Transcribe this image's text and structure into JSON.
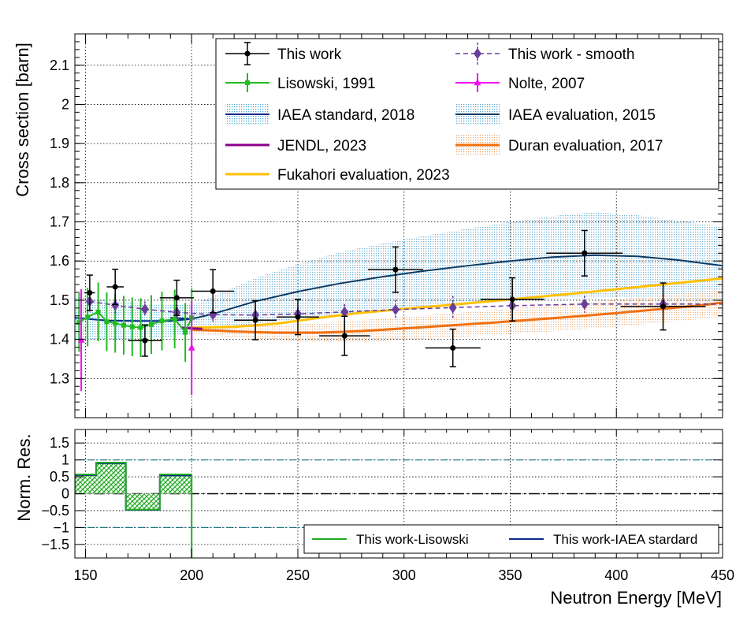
{
  "chart_data": [
    {
      "type": "scatter",
      "panel": "top",
      "ylabel": "Cross section [barn]",
      "xlim": [
        145,
        450
      ],
      "ylim": [
        1.2,
        2.18
      ],
      "yticks": [
        1.3,
        1.4,
        1.5,
        1.6,
        1.7,
        1.8,
        1.9,
        2,
        2.1
      ],
      "ytick_labels": [
        "1.3",
        "1.4",
        "1.5",
        "1.6",
        "1.7",
        "1.8",
        "1.9",
        "2",
        "2.1"
      ],
      "legend": {
        "placement": "top-right",
        "entries": [
          {
            "key": "this_work",
            "label": "This work"
          },
          {
            "key": "this_work_smooth",
            "label": "This work - smooth"
          },
          {
            "key": "lisowski",
            "label": "Lisowski, 1991"
          },
          {
            "key": "nolte",
            "label": "Nolte, 2007"
          },
          {
            "key": "iaea_std",
            "label": "IAEA standard, 2018"
          },
          {
            "key": "iaea_eval",
            "label": "IAEA evaluation, 2015"
          },
          {
            "key": "jendl",
            "label": "JENDL, 2023"
          },
          {
            "key": "duran",
            "label": "Duran evaluation, 2017"
          },
          {
            "key": "fukahori",
            "label": "Fukahori evaluation, 2023"
          }
        ]
      },
      "series": [
        {
          "key": "this_work",
          "name": "This work",
          "color": "#000000",
          "marker": "circle",
          "points": [
            {
              "x": 152,
              "y": 1.519,
              "xerr": 2.5,
              "yerr": 0.045
            },
            {
              "x": 164,
              "y": 1.534,
              "xerr": 4,
              "yerr": 0.045
            },
            {
              "x": 178,
              "y": 1.397,
              "xerr": 8,
              "yerr": 0.04
            },
            {
              "x": 193,
              "y": 1.506,
              "xerr": 8,
              "yerr": 0.045
            },
            {
              "x": 210,
              "y": 1.523,
              "xerr": 10,
              "yerr": 0.055
            },
            {
              "x": 230,
              "y": 1.449,
              "xerr": 10,
              "yerr": 0.05
            },
            {
              "x": 250,
              "y": 1.457,
              "xerr": 10,
              "yerr": 0.045
            },
            {
              "x": 272,
              "y": 1.409,
              "xerr": 12,
              "yerr": 0.05
            },
            {
              "x": 296,
              "y": 1.578,
              "xerr": 13,
              "yerr": 0.058
            },
            {
              "x": 323,
              "y": 1.378,
              "xerr": 13,
              "yerr": 0.048
            },
            {
              "x": 351,
              "y": 1.502,
              "xerr": 15,
              "yerr": 0.055
            },
            {
              "x": 385,
              "y": 1.62,
              "xerr": 18,
              "yerr": 0.058
            },
            {
              "x": 422,
              "y": 1.484,
              "xerr": 20,
              "yerr": 0.06
            }
          ]
        },
        {
          "key": "this_work_smooth",
          "name": "This work - smooth",
          "color": "#6a3d9a",
          "marker": "diamond",
          "points": [
            {
              "x": 152,
              "y": 1.497,
              "yerr": 0.03
            },
            {
              "x": 164,
              "y": 1.487,
              "yerr": 0.025
            },
            {
              "x": 178,
              "y": 1.477,
              "yerr": 0.02
            },
            {
              "x": 193,
              "y": 1.469,
              "yerr": 0.02
            },
            {
              "x": 210,
              "y": 1.463,
              "yerr": 0.018
            },
            {
              "x": 230,
              "y": 1.462,
              "yerr": 0.018
            },
            {
              "x": 250,
              "y": 1.465,
              "yerr": 0.018
            },
            {
              "x": 272,
              "y": 1.47,
              "yerr": 0.02
            },
            {
              "x": 296,
              "y": 1.476,
              "yerr": 0.025
            },
            {
              "x": 323,
              "y": 1.481,
              "yerr": 0.03
            },
            {
              "x": 351,
              "y": 1.486,
              "yerr": 0.03
            },
            {
              "x": 385,
              "y": 1.49,
              "yerr": 0.022
            },
            {
              "x": 422,
              "y": 1.49,
              "yerr": 0.025
            }
          ],
          "line_end_x": 450
        },
        {
          "key": "lisowski",
          "name": "Lisowski, 1991",
          "color": "#22bb22",
          "marker": "square",
          "points": [
            {
              "x": 147,
              "y": 1.443,
              "yerr": 0.075
            },
            {
              "x": 151,
              "y": 1.457,
              "yerr": 0.075
            },
            {
              "x": 156,
              "y": 1.47,
              "yerr": 0.075
            },
            {
              "x": 160,
              "y": 1.445,
              "yerr": 0.075
            },
            {
              "x": 164,
              "y": 1.441,
              "yerr": 0.075
            },
            {
              "x": 168,
              "y": 1.436,
              "yerr": 0.075
            },
            {
              "x": 172,
              "y": 1.432,
              "yerr": 0.075
            },
            {
              "x": 176,
              "y": 1.43,
              "yerr": 0.075
            },
            {
              "x": 181,
              "y": 1.438,
              "yerr": 0.075
            },
            {
              "x": 186,
              "y": 1.447,
              "yerr": 0.075
            },
            {
              "x": 192,
              "y": 1.452,
              "yerr": 0.075
            },
            {
              "x": 197,
              "y": 1.418,
              "yerr": 0.075
            },
            {
              "x": 200,
              "y": 1.455,
              "yerr": 0.075
            }
          ]
        },
        {
          "key": "nolte",
          "name": "Nolte, 2007",
          "color": "#ee10ee",
          "marker": "triangle",
          "points": [
            {
              "x": 148,
              "y": 1.398,
              "yerr": 0.13
            },
            {
              "x": 200,
              "y": 1.378,
              "yerr": 0.12
            }
          ]
        },
        {
          "key": "iaea_std",
          "name": "IAEA standard, 2018",
          "color": "#0a2a8a",
          "band_color": "#4aa8d8",
          "x": [
            145,
            160,
            175,
            190,
            200
          ],
          "y": [
            1.455,
            1.448,
            1.447,
            1.447,
            1.452
          ],
          "band_halfwidth": [
            0.055,
            0.05,
            0.045,
            0.04,
            0.04
          ]
        },
        {
          "key": "iaea_eval",
          "name": "IAEA evaluation, 2015",
          "color": "#0b3a63",
          "band_color": "#5ba3cc",
          "x": [
            190,
            200,
            210,
            230,
            250,
            270,
            290,
            310,
            330,
            350,
            370,
            390,
            410,
            430,
            450
          ],
          "y": [
            1.455,
            1.452,
            1.465,
            1.497,
            1.522,
            1.543,
            1.56,
            1.575,
            1.588,
            1.6,
            1.61,
            1.615,
            1.612,
            1.602,
            1.588
          ],
          "band_halfwidth": [
            0.035,
            0.035,
            0.045,
            0.06,
            0.07,
            0.08,
            0.085,
            0.09,
            0.095,
            0.1,
            0.105,
            0.11,
            0.105,
            0.1,
            0.1
          ]
        },
        {
          "key": "jendl",
          "name": "JENDL, 2023",
          "color": "#8b008b",
          "x": [
            195,
            200,
            205
          ],
          "y": [
            1.43,
            1.428,
            1.427
          ]
        },
        {
          "key": "duran",
          "name": "Duran evaluation, 2017",
          "color": "#f07010",
          "band_color": "#e8a060",
          "x": [
            200,
            220,
            240,
            260,
            280,
            300,
            320,
            340,
            360,
            380,
            400,
            420,
            440,
            450
          ],
          "y": [
            1.425,
            1.42,
            1.417,
            1.417,
            1.421,
            1.428,
            1.435,
            1.442,
            1.45,
            1.458,
            1.467,
            1.477,
            1.487,
            1.494
          ],
          "band_halfwidth": [
            0.01,
            0.015,
            0.02,
            0.025,
            0.028,
            0.03,
            0.03,
            0.032,
            0.033,
            0.034,
            0.035,
            0.035,
            0.035,
            0.035
          ]
        },
        {
          "key": "fukahori",
          "name": "Fukahori evaluation, 2023",
          "color": "#ffc000",
          "x": [
            200,
            220,
            240,
            260,
            280,
            300,
            320,
            340,
            360,
            380,
            400,
            420,
            440,
            450
          ],
          "y": [
            1.43,
            1.432,
            1.44,
            1.455,
            1.468,
            1.478,
            1.487,
            1.497,
            1.507,
            1.517,
            1.528,
            1.539,
            1.55,
            1.556
          ]
        }
      ]
    },
    {
      "type": "bar",
      "panel": "bottom",
      "ylabel": "Norm. Res.",
      "xlabel": "Neutron Energy [MeV]",
      "xlim": [
        145,
        450
      ],
      "ylim": [
        -1.9,
        1.9
      ],
      "xticks": [
        150,
        200,
        250,
        300,
        350,
        400,
        450
      ],
      "xtick_labels": [
        "150",
        "200",
        "250",
        "300",
        "350",
        "400",
        "450"
      ],
      "yticks": [
        -1.5,
        -1,
        -0.5,
        0,
        0.5,
        1,
        1.5
      ],
      "ytick_labels": [
        "−1.5",
        "−1",
        "−0.5",
        "0",
        "0.5",
        "1",
        "1.5"
      ],
      "reference_lines": [
        -1,
        0,
        1
      ],
      "legend": {
        "placement": "bottom-right",
        "entries": [
          {
            "key": "res_lisowski",
            "label": "This work-Lisowski"
          },
          {
            "key": "res_iaea",
            "label": "This work-IAEA stardard"
          }
        ]
      },
      "series": [
        {
          "key": "res_lisowski",
          "name": "This work-Lisowski",
          "color": "#22aa22",
          "bins": [
            {
              "x0": 145,
              "x1": 155,
              "value": 0.57
            },
            {
              "x0": 155,
              "x1": 169,
              "value": 0.92
            },
            {
              "x0": 169,
              "x1": 185,
              "value": -0.47
            },
            {
              "x0": 185,
              "x1": 200,
              "value": 0.57
            }
          ]
        },
        {
          "key": "res_iaea",
          "name": "This work-IAEA stardard",
          "color": "#0a2a8a",
          "bins": [
            {
              "x0": 145,
              "x1": 155,
              "value": 0.55
            },
            {
              "x0": 155,
              "x1": 169,
              "value": 0.9
            },
            {
              "x0": 169,
              "x1": 185,
              "value": -0.48
            },
            {
              "x0": 185,
              "x1": 200,
              "value": 0.54
            }
          ]
        }
      ]
    }
  ]
}
